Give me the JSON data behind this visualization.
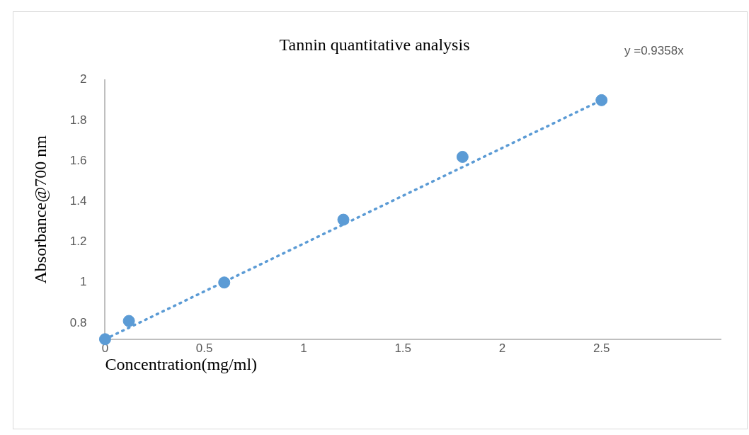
{
  "chart_data": {
    "type": "scatter",
    "title": "Tannin quantitative analysis",
    "xlabel": "Concentration(mg/ml)",
    "ylabel": "Absorbance@700 nm",
    "series": [
      {
        "color": "#5b9bd5",
        "x": [
          0,
          0.12,
          0.6,
          1.2,
          1.8,
          2.5
        ],
        "values": [
          0.72,
          0.81,
          1.0,
          1.31,
          1.62,
          1.9
        ],
        "marker": "circle"
      },
      {
        "type": "line",
        "color": "#5b9bd5",
        "x": [
          0,
          2.5
        ],
        "values": [
          0.72,
          1.9
        ],
        "line_style": "dotted",
        "marker": "none"
      }
    ],
    "xlim": [
      0,
      3.1
    ],
    "xticks": [
      0,
      0.5,
      1,
      1.5,
      2,
      2.5
    ],
    "ylim": [
      0.72,
      2
    ],
    "yticks": [
      0.8,
      1,
      1.2,
      1.4,
      1.6,
      1.8,
      2
    ],
    "grid": false,
    "legend": false,
    "annotations": [
      "y =0.9358x"
    ]
  }
}
